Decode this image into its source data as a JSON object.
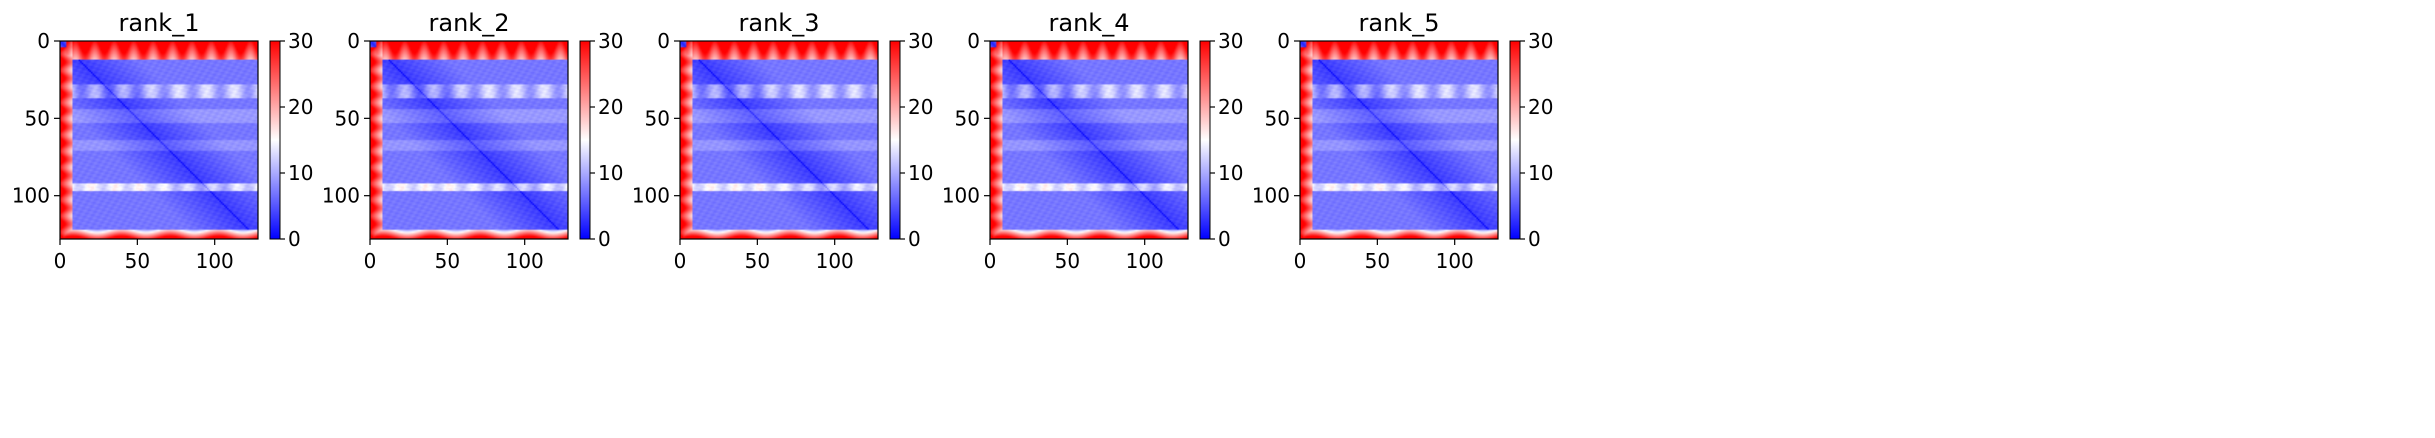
{
  "chart_data": [
    {
      "type": "heatmap",
      "title": "rank_1",
      "matrix_size": 128,
      "x_ticks": [
        0,
        50,
        100
      ],
      "y_ticks": [
        0,
        50,
        100
      ],
      "xlim": [
        0,
        128
      ],
      "ylim": [
        128,
        0
      ],
      "colorbar": {
        "min": 0,
        "max": 30,
        "ticks": [
          0,
          10,
          20,
          30
        ]
      },
      "colormap": "bwr"
    },
    {
      "type": "heatmap",
      "title": "rank_2",
      "matrix_size": 128,
      "x_ticks": [
        0,
        50,
        100
      ],
      "y_ticks": [
        0,
        50,
        100
      ],
      "xlim": [
        0,
        128
      ],
      "ylim": [
        128,
        0
      ],
      "colorbar": {
        "min": 0,
        "max": 30,
        "ticks": [
          0,
          10,
          20,
          30
        ]
      },
      "colormap": "bwr"
    },
    {
      "type": "heatmap",
      "title": "rank_3",
      "matrix_size": 128,
      "x_ticks": [
        0,
        50,
        100
      ],
      "y_ticks": [
        0,
        50,
        100
      ],
      "xlim": [
        0,
        128
      ],
      "ylim": [
        128,
        0
      ],
      "colorbar": {
        "min": 0,
        "max": 30,
        "ticks": [
          0,
          10,
          20,
          30
        ]
      },
      "colormap": "bwr"
    },
    {
      "type": "heatmap",
      "title": "rank_4",
      "matrix_size": 128,
      "x_ticks": [
        0,
        50,
        100
      ],
      "y_ticks": [
        0,
        50,
        100
      ],
      "xlim": [
        0,
        128
      ],
      "ylim": [
        128,
        0
      ],
      "colorbar": {
        "min": 0,
        "max": 30,
        "ticks": [
          0,
          10,
          20,
          30
        ]
      },
      "colormap": "bwr"
    },
    {
      "type": "heatmap",
      "title": "rank_5",
      "matrix_size": 128,
      "x_ticks": [
        0,
        50,
        100
      ],
      "y_ticks": [
        0,
        50,
        100
      ],
      "xlim": [
        0,
        128
      ],
      "ylim": [
        128,
        0
      ],
      "colorbar": {
        "min": 0,
        "max": 30,
        "ticks": [
          0,
          10,
          20,
          30
        ]
      },
      "colormap": "bwr"
    }
  ],
  "colors": {
    "low": "#0000ff",
    "mid": "#ffffff",
    "high": "#ff0000"
  }
}
